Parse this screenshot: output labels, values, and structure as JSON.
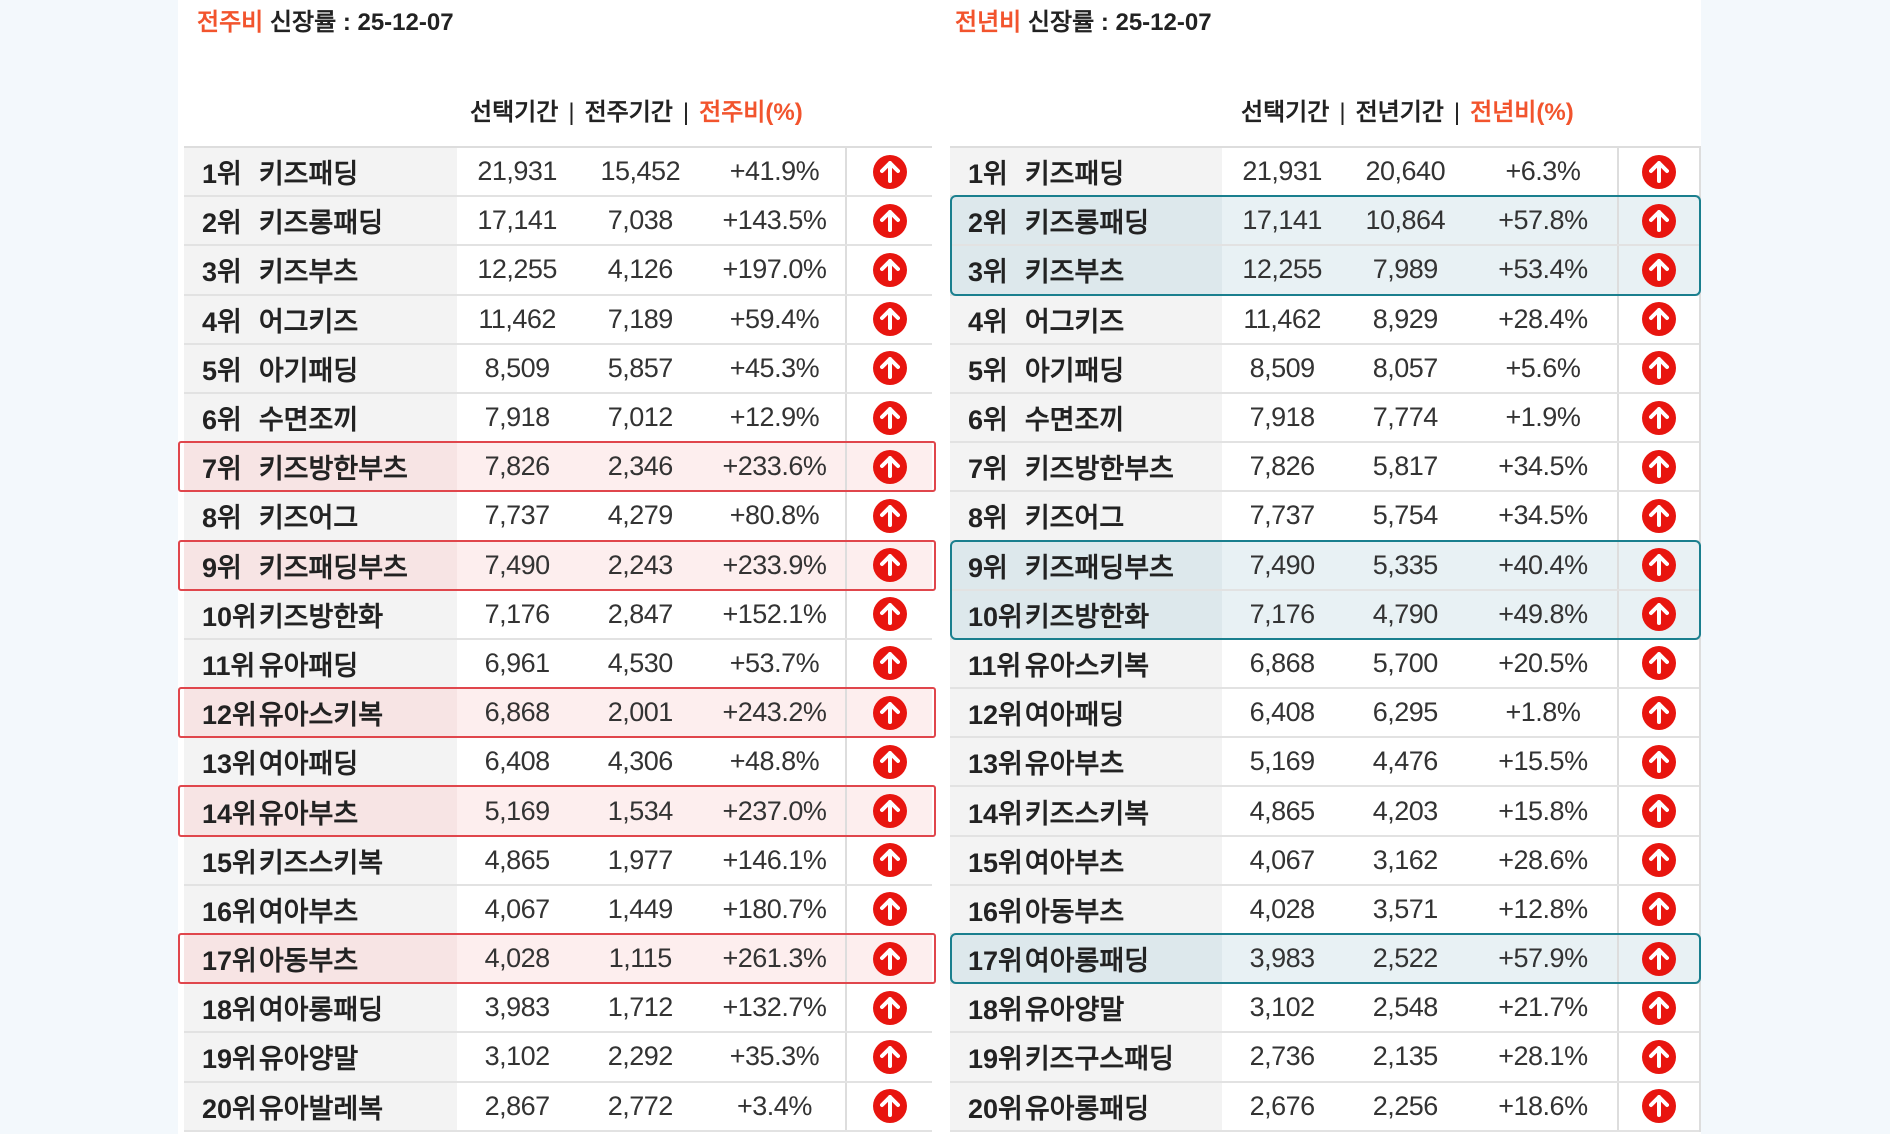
{
  "left": {
    "title_accent": "전주비",
    "title_rest": " 신장률  : 25-12-07",
    "headers": {
      "selected": "선택기간",
      "compare": "전주기간",
      "ratio": "전주비(%)",
      "separator": "|"
    },
    "rows": [
      {
        "rank": "1위",
        "name": "키즈패딩",
        "selected": "21,931",
        "compare": "15,452",
        "ratio": "+41.9%",
        "highlight": false
      },
      {
        "rank": "2위",
        "name": "키즈롱패딩",
        "selected": "17,141",
        "compare": "7,038",
        "ratio": "+143.5%",
        "highlight": false
      },
      {
        "rank": "3위",
        "name": "키즈부츠",
        "selected": "12,255",
        "compare": "4,126",
        "ratio": "+197.0%",
        "highlight": false
      },
      {
        "rank": "4위",
        "name": "어그키즈",
        "selected": "11,462",
        "compare": "7,189",
        "ratio": "+59.4%",
        "highlight": false
      },
      {
        "rank": "5위",
        "name": "아기패딩",
        "selected": "8,509",
        "compare": "5,857",
        "ratio": "+45.3%",
        "highlight": false
      },
      {
        "rank": "6위",
        "name": "수면조끼",
        "selected": "7,918",
        "compare": "7,012",
        "ratio": "+12.9%",
        "highlight": false
      },
      {
        "rank": "7위",
        "name": "키즈방한부츠",
        "selected": "7,826",
        "compare": "2,346",
        "ratio": "+233.6%",
        "highlight": true
      },
      {
        "rank": "8위",
        "name": "키즈어그",
        "selected": "7,737",
        "compare": "4,279",
        "ratio": "+80.8%",
        "highlight": false
      },
      {
        "rank": "9위",
        "name": "키즈패딩부츠",
        "selected": "7,490",
        "compare": "2,243",
        "ratio": "+233.9%",
        "highlight": true
      },
      {
        "rank": "10위",
        "name": "키즈방한화",
        "selected": "7,176",
        "compare": "2,847",
        "ratio": "+152.1%",
        "highlight": false
      },
      {
        "rank": "11위",
        "name": "유아패딩",
        "selected": "6,961",
        "compare": "4,530",
        "ratio": "+53.7%",
        "highlight": false
      },
      {
        "rank": "12위",
        "name": "유아스키복",
        "selected": "6,868",
        "compare": "2,001",
        "ratio": "+243.2%",
        "highlight": true
      },
      {
        "rank": "13위",
        "name": "여아패딩",
        "selected": "6,408",
        "compare": "4,306",
        "ratio": "+48.8%",
        "highlight": false
      },
      {
        "rank": "14위",
        "name": "유아부츠",
        "selected": "5,169",
        "compare": "1,534",
        "ratio": "+237.0%",
        "highlight": true
      },
      {
        "rank": "15위",
        "name": "키즈스키복",
        "selected": "4,865",
        "compare": "1,977",
        "ratio": "+146.1%",
        "highlight": false
      },
      {
        "rank": "16위",
        "name": "여아부츠",
        "selected": "4,067",
        "compare": "1,449",
        "ratio": "+180.7%",
        "highlight": false
      },
      {
        "rank": "17위",
        "name": "아동부츠",
        "selected": "4,028",
        "compare": "1,115",
        "ratio": "+261.3%",
        "highlight": true
      },
      {
        "rank": "18위",
        "name": "여아롱패딩",
        "selected": "3,983",
        "compare": "1,712",
        "ratio": "+132.7%",
        "highlight": false
      },
      {
        "rank": "19위",
        "name": "유아양말",
        "selected": "3,102",
        "compare": "2,292",
        "ratio": "+35.3%",
        "highlight": false
      },
      {
        "rank": "20위",
        "name": "유아발레복",
        "selected": "2,867",
        "compare": "2,772",
        "ratio": "+3.4%",
        "highlight": false
      }
    ]
  },
  "right": {
    "title_accent": "전년비",
    "title_rest": " 신장률 : 25-12-07",
    "headers": {
      "selected": "선택기간",
      "compare": "전년기간",
      "ratio": "전년비(%)",
      "separator": "|"
    },
    "rows": [
      {
        "rank": "1위",
        "name": "키즈패딩",
        "selected": "21,931",
        "compare": "20,640",
        "ratio": "+6.3%",
        "highlight": false
      },
      {
        "rank": "2위",
        "name": "키즈롱패딩",
        "selected": "17,141",
        "compare": "10,864",
        "ratio": "+57.8%",
        "highlight": true
      },
      {
        "rank": "3위",
        "name": "키즈부츠",
        "selected": "12,255",
        "compare": "7,989",
        "ratio": "+53.4%",
        "highlight": true
      },
      {
        "rank": "4위",
        "name": "어그키즈",
        "selected": "11,462",
        "compare": "8,929",
        "ratio": "+28.4%",
        "highlight": false
      },
      {
        "rank": "5위",
        "name": "아기패딩",
        "selected": "8,509",
        "compare": "8,057",
        "ratio": "+5.6%",
        "highlight": false
      },
      {
        "rank": "6위",
        "name": "수면조끼",
        "selected": "7,918",
        "compare": "7,774",
        "ratio": "+1.9%",
        "highlight": false
      },
      {
        "rank": "7위",
        "name": "키즈방한부츠",
        "selected": "7,826",
        "compare": "5,817",
        "ratio": "+34.5%",
        "highlight": false
      },
      {
        "rank": "8위",
        "name": "키즈어그",
        "selected": "7,737",
        "compare": "5,754",
        "ratio": "+34.5%",
        "highlight": false
      },
      {
        "rank": "9위",
        "name": "키즈패딩부츠",
        "selected": "7,490",
        "compare": "5,335",
        "ratio": "+40.4%",
        "highlight": true
      },
      {
        "rank": "10위",
        "name": "키즈방한화",
        "selected": "7,176",
        "compare": "4,790",
        "ratio": "+49.8%",
        "highlight": true
      },
      {
        "rank": "11위",
        "name": "유아스키복",
        "selected": "6,868",
        "compare": "5,700",
        "ratio": "+20.5%",
        "highlight": false
      },
      {
        "rank": "12위",
        "name": "여아패딩",
        "selected": "6,408",
        "compare": "6,295",
        "ratio": "+1.8%",
        "highlight": false
      },
      {
        "rank": "13위",
        "name": "유아부츠",
        "selected": "5,169",
        "compare": "4,476",
        "ratio": "+15.5%",
        "highlight": false
      },
      {
        "rank": "14위",
        "name": "키즈스키복",
        "selected": "4,865",
        "compare": "4,203",
        "ratio": "+15.8%",
        "highlight": false
      },
      {
        "rank": "15위",
        "name": "여아부츠",
        "selected": "4,067",
        "compare": "3,162",
        "ratio": "+28.6%",
        "highlight": false
      },
      {
        "rank": "16위",
        "name": "아동부츠",
        "selected": "4,028",
        "compare": "3,571",
        "ratio": "+12.8%",
        "highlight": false
      },
      {
        "rank": "17위",
        "name": "여아롱패딩",
        "selected": "3,983",
        "compare": "2,522",
        "ratio": "+57.9%",
        "highlight": true
      },
      {
        "rank": "18위",
        "name": "유아양말",
        "selected": "3,102",
        "compare": "2,548",
        "ratio": "+21.7%",
        "highlight": false
      },
      {
        "rank": "19위",
        "name": "키즈구스패딩",
        "selected": "2,736",
        "compare": "2,135",
        "ratio": "+28.1%",
        "highlight": false
      },
      {
        "rank": "20위",
        "name": "유아롱패딩",
        "selected": "2,676",
        "compare": "2,256",
        "ratio": "+18.6%",
        "highlight": false
      }
    ]
  },
  "icons": {
    "trend": "arrow-up-circle-icon"
  },
  "colors": {
    "accent": "#f2542d",
    "up": "#e8150f",
    "weekly_highlight": "#e0464c",
    "yearly_highlight": "#1a7f8e"
  }
}
